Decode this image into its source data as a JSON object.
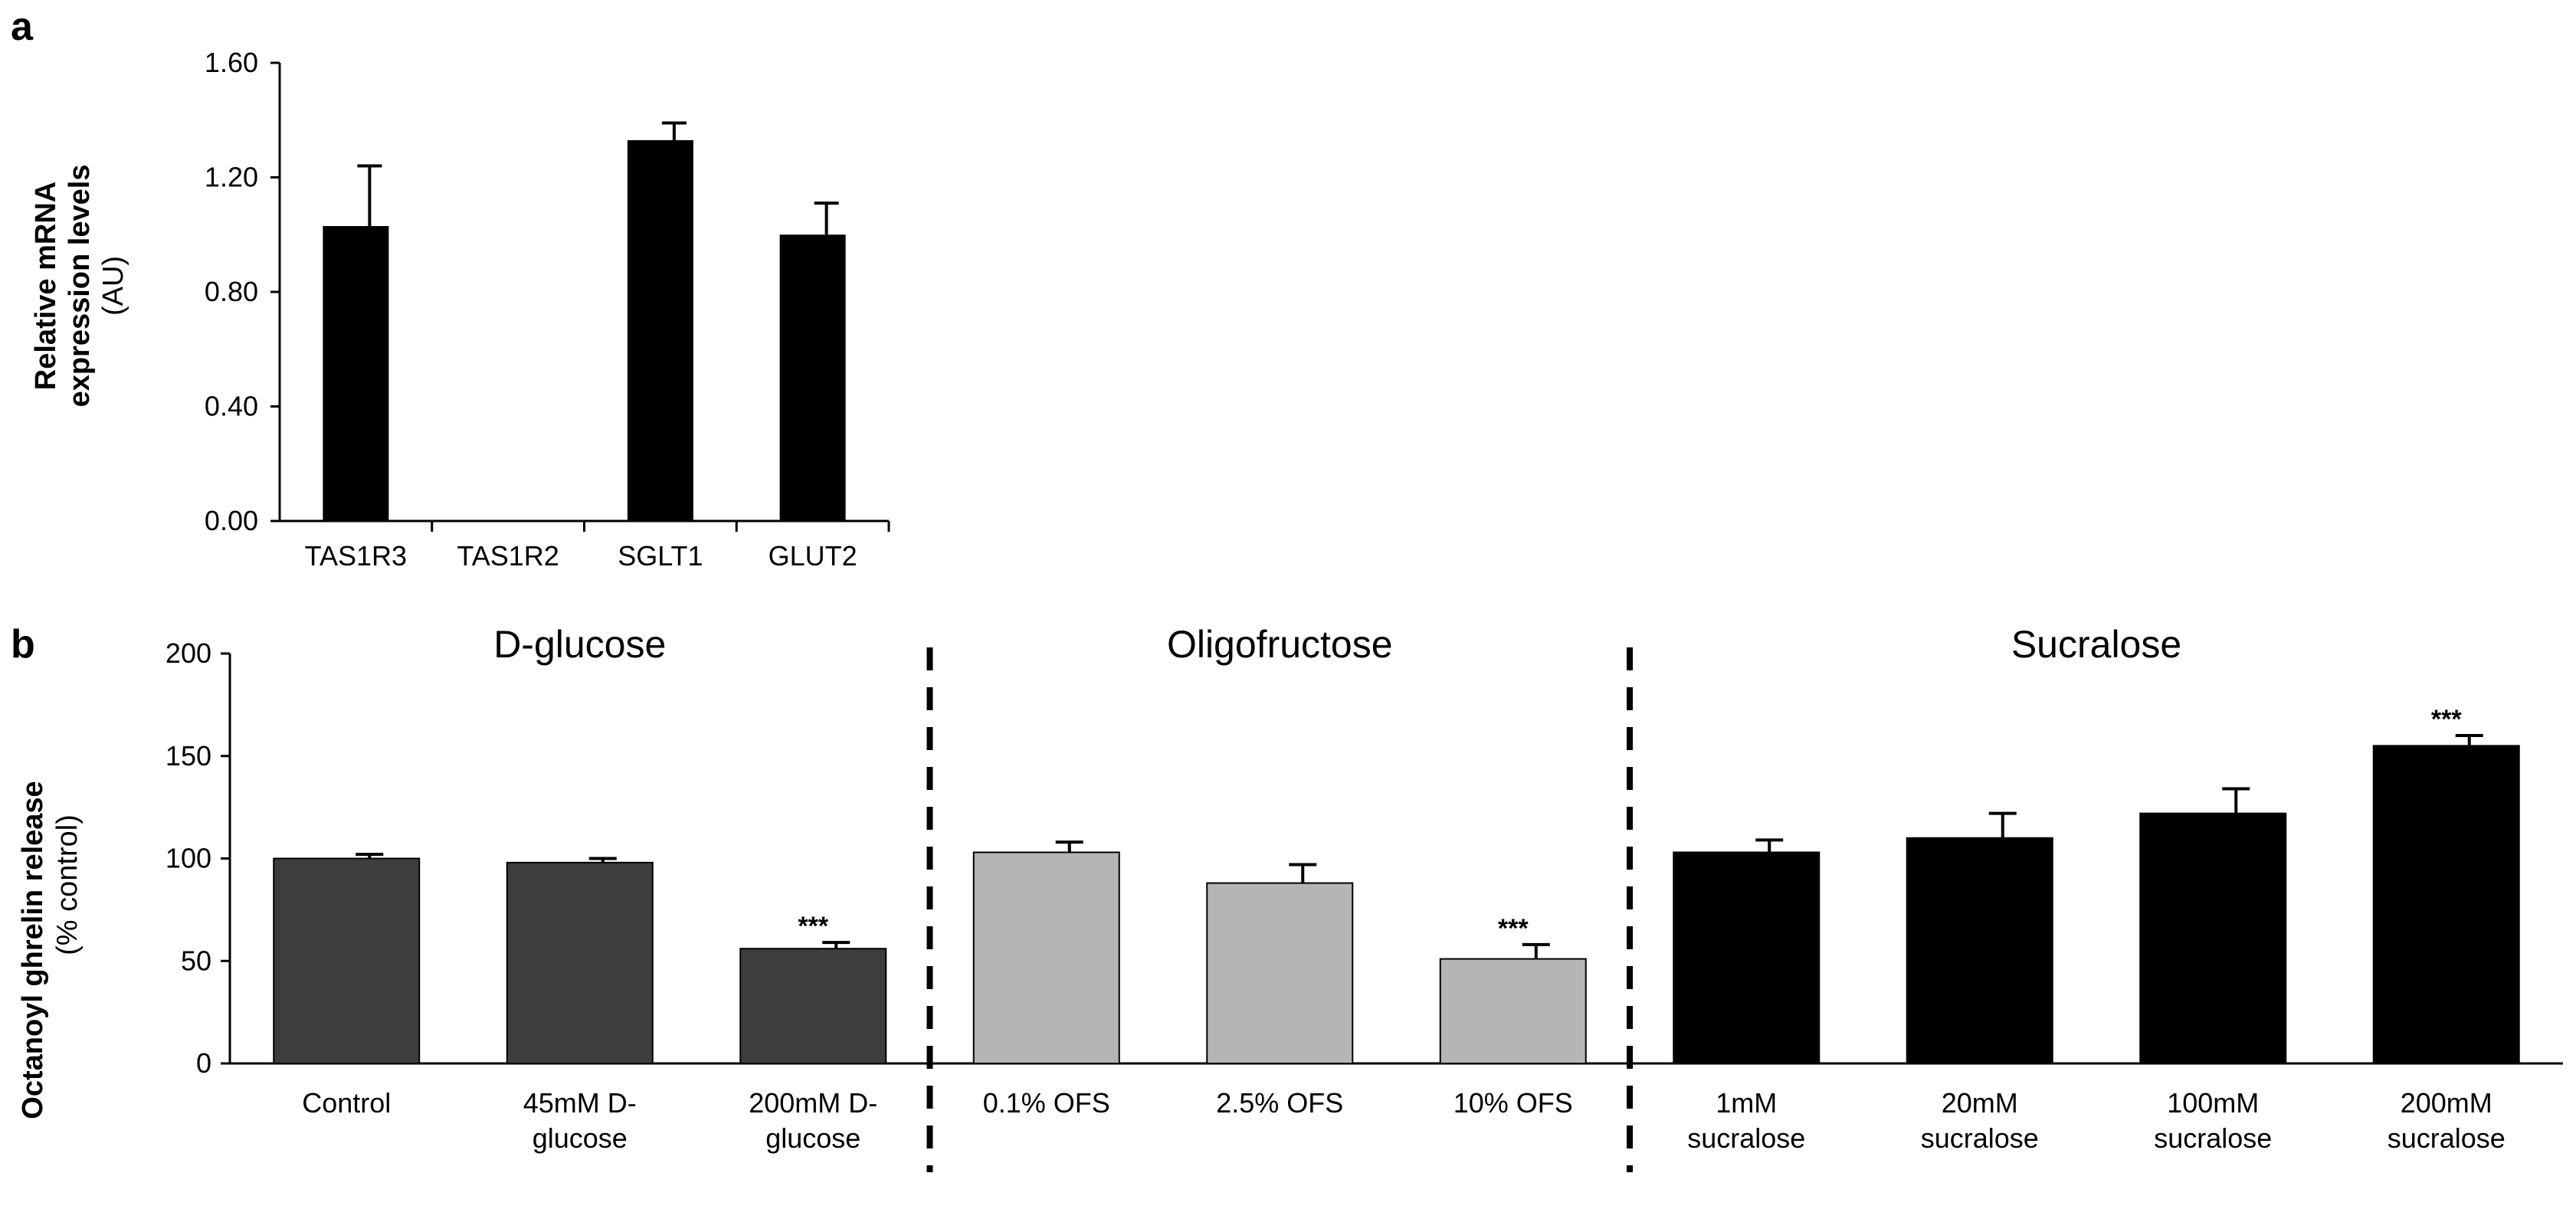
{
  "chart_data": [
    {
      "panel": "a",
      "type": "bar",
      "ylabel_lines": [
        "Relative mRNA",
        "expression levels"
      ],
      "ylabel_sub": "(AU)",
      "ylim": [
        0,
        1.6
      ],
      "yticks": [
        "0.00",
        "0.40",
        "0.80",
        "1.20",
        "1.60"
      ],
      "ytick_values": [
        0,
        0.4,
        0.8,
        1.2,
        1.6
      ],
      "categories": [
        "TAS1R3",
        "TAS1R2",
        "SGLT1",
        "GLUT2"
      ],
      "values": [
        1.03,
        0,
        1.33,
        1.0
      ],
      "errors": [
        0.21,
        0,
        0.06,
        0.11
      ],
      "bar_color": "#000000"
    },
    {
      "panel": "b",
      "type": "bar",
      "ylabel": "Octanoyl ghrelin release",
      "ylabel_sub": "(% control)",
      "ylim": [
        0,
        200
      ],
      "yticks": [
        "0",
        "50",
        "100",
        "150",
        "200"
      ],
      "ytick_values": [
        0,
        50,
        100,
        150,
        200
      ],
      "groups": [
        {
          "title": "D-glucose",
          "color": "#3d3d3d",
          "categories": [
            [
              "Control"
            ],
            [
              "45mM D-",
              "glucose"
            ],
            [
              "200mM D-",
              "glucose"
            ]
          ],
          "values": [
            100,
            98,
            56
          ],
          "errors": [
            2,
            2,
            3
          ],
          "significance": [
            "",
            "",
            "***"
          ]
        },
        {
          "title": "Oligofructose",
          "color": "#b5b5b5",
          "categories": [
            [
              "0.1% OFS"
            ],
            [
              "2.5% OFS"
            ],
            [
              "10% OFS"
            ]
          ],
          "values": [
            103,
            88,
            51
          ],
          "errors": [
            5,
            9,
            7
          ],
          "significance": [
            "",
            "",
            "***"
          ]
        },
        {
          "title": "Sucralose",
          "color": "#000000",
          "categories": [
            [
              "1mM",
              "sucralose"
            ],
            [
              "20mM",
              "sucralose"
            ],
            [
              "100mM",
              "sucralose"
            ],
            [
              "200mM",
              "sucralose"
            ]
          ],
          "values": [
            103,
            110,
            122,
            155
          ],
          "errors": [
            6,
            12,
            12,
            5
          ],
          "significance": [
            "",
            "",
            "",
            "***"
          ]
        }
      ]
    }
  ]
}
